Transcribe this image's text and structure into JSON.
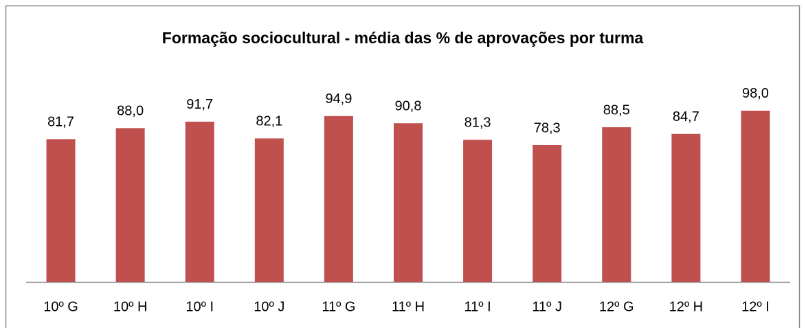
{
  "chart_data": {
    "type": "bar",
    "title": "Formação sociocultural - média das % de aprovações por turma",
    "categories": [
      "10º G",
      "10º H",
      "10º I",
      "10º J",
      "11º G",
      "11º H",
      "11º I",
      "11º J",
      "12º G",
      "12º H",
      "12º I"
    ],
    "values": [
      81.7,
      88.0,
      91.7,
      82.1,
      94.9,
      90.8,
      81.3,
      78.3,
      88.5,
      84.7,
      98.0
    ],
    "value_labels": [
      "81,7",
      "88,0",
      "91,7",
      "82,1",
      "94,9",
      "90,8",
      "81,3",
      "78,3",
      "88,5",
      "84,7",
      "98,0"
    ],
    "color": "#c0504d",
    "ylim": [
      0,
      120
    ]
  }
}
